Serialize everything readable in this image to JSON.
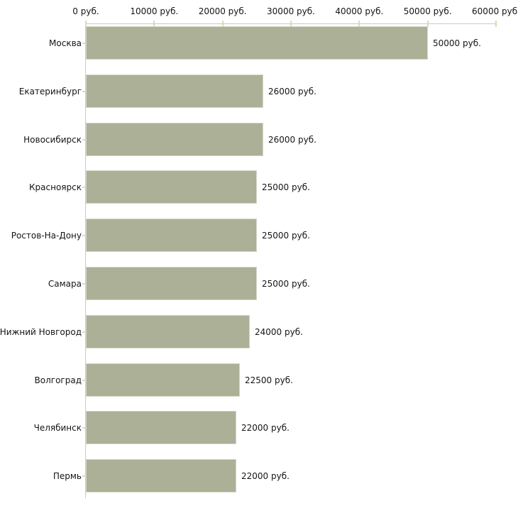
{
  "chart_data": {
    "type": "bar",
    "orientation": "horizontal",
    "title": "",
    "xlabel": "",
    "ylabel": "",
    "categories": [
      "Москва",
      "Екатеринбург",
      "Новосибирск",
      "Красноярск",
      "Ростов-На-Дону",
      "Самара",
      "Нижний Новгород",
      "Волгоград",
      "Челябинск",
      "Пермь"
    ],
    "values": [
      50000,
      26000,
      26000,
      25000,
      25000,
      25000,
      24000,
      22500,
      22000,
      22000
    ],
    "value_labels": [
      "50000 руб.",
      "26000 руб.",
      "26000 руб.",
      "25000 руб.",
      "25000 руб.",
      "25000 руб.",
      "24000 руб.",
      "22500 руб.",
      "22000 руб.",
      "22000 руб."
    ],
    "x_axis": {
      "position": "top",
      "min": 0,
      "max": 60000,
      "ticks": [
        0,
        10000,
        20000,
        30000,
        40000,
        50000,
        60000
      ],
      "tick_labels": [
        "0 руб.",
        "10000 руб.",
        "20000 руб.",
        "30000 руб.",
        "40000 руб.",
        "50000 руб.",
        "60000 руб."
      ]
    },
    "grid": false,
    "legend": false,
    "colors": {
      "background": "#ffffff",
      "bar_fill": "#abb096",
      "bar_border": "#d4d6c5",
      "axis_line": "#c9c9c9",
      "tick_mark": "#d8dabd",
      "text": "#141414"
    }
  }
}
